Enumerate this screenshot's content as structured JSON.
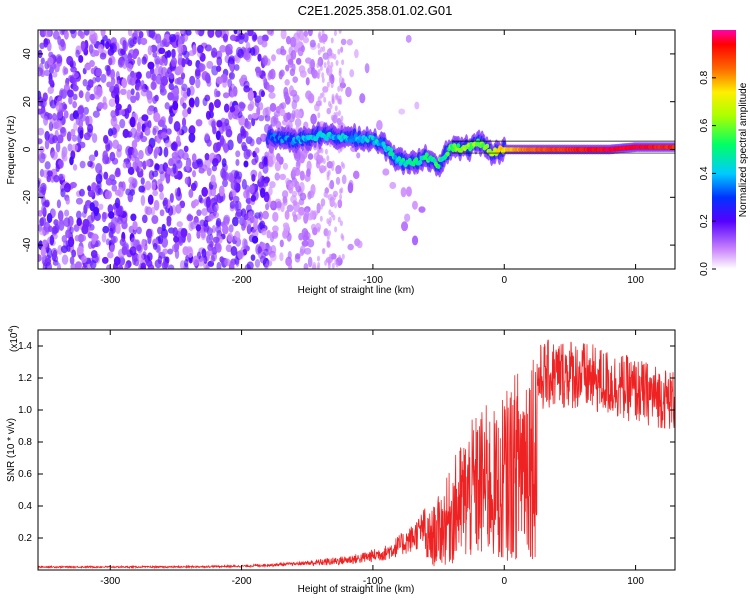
{
  "title": "C2E1.2025.358.01.02.G01",
  "chart_data": [
    {
      "type": "heatmap",
      "title": "C2E1.2025.358.01.02.G01",
      "xlabel": "Height of straight line (km)",
      "ylabel": "Frequency (Hz)",
      "xlim": [
        -355,
        130
      ],
      "ylim": [
        -50,
        50
      ],
      "xticks": [
        -300,
        -200,
        -100,
        0,
        100
      ],
      "yticks": [
        -40,
        -20,
        0,
        20,
        40
      ],
      "colorbar": {
        "label": "Normalized spectral amplitude",
        "range": [
          0,
          1
        ],
        "ticks": [
          0.0,
          0.2,
          0.4,
          0.6,
          0.8
        ]
      },
      "ridge": {
        "x": [
          -175,
          -160,
          -140,
          -120,
          -100,
          -90,
          -80,
          -70,
          -60,
          -50,
          -40,
          -30,
          -20,
          -10,
          0,
          20,
          50,
          80,
          100,
          130
        ],
        "y": [
          5,
          4,
          6,
          5,
          4,
          1,
          -5,
          -6,
          -3,
          -6,
          1,
          0,
          3,
          -1,
          0,
          0,
          0,
          0,
          1,
          1
        ],
        "amplitude": [
          0.3,
          0.35,
          0.4,
          0.4,
          0.4,
          0.4,
          0.45,
          0.45,
          0.5,
          0.5,
          0.55,
          0.6,
          0.6,
          0.65,
          0.75,
          0.85,
          0.9,
          0.95,
          0.95,
          0.9
        ]
      },
      "noise_region_x": [
        -355,
        -120
      ]
    },
    {
      "type": "line",
      "title": "",
      "xlabel": "Height of straight line (km)",
      "ylabel": "SNR (10 * v/v)",
      "y_multiplier": "(x10",
      "y_multiplier_exp": "4",
      "y_multiplier_close": ")",
      "xlim": [
        -355,
        130
      ],
      "ylim": [
        0,
        1.5
      ],
      "xticks": [
        -300,
        -200,
        -100,
        0,
        100
      ],
      "yticks": [
        0.2,
        0.4,
        0.6,
        0.8,
        1.0,
        1.2,
        1.4
      ],
      "series": [
        {
          "name": "SNR",
          "color": "#ee2222",
          "envelope_x": [
            -355,
            -250,
            -200,
            -160,
            -130,
            -110,
            -90,
            -70,
            -55,
            -45,
            -35,
            -25,
            -15,
            -5,
            0,
            10,
            20,
            30,
            50,
            70,
            90,
            110,
            130
          ],
          "envelope_y": [
            0.02,
            0.02,
            0.025,
            0.04,
            0.06,
            0.08,
            0.12,
            0.22,
            0.35,
            0.5,
            0.7,
            0.85,
            0.95,
            0.9,
            1.0,
            1.15,
            1.3,
            1.38,
            1.4,
            1.35,
            1.3,
            1.25,
            1.2
          ]
        }
      ]
    }
  ]
}
